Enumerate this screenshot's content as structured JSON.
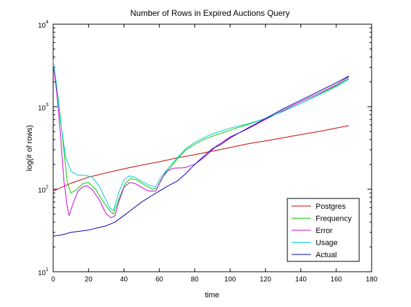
{
  "chart_data": {
    "type": "line",
    "title": "Number of Rows in Expired Auctions Query",
    "xlabel": "time",
    "ylabel": "log(# of rows)",
    "xlim": [
      0,
      180
    ],
    "ylim": [
      10,
      10000
    ],
    "yscale": "log",
    "x_ticks": [
      0,
      20,
      40,
      60,
      80,
      100,
      120,
      140,
      160,
      180
    ],
    "x_tick_labels": [
      "0",
      "20",
      "40",
      "60",
      "80",
      "100",
      "120",
      "140",
      "160",
      "180"
    ],
    "y_ticks": [
      10,
      100,
      1000,
      10000
    ],
    "y_tick_labels": [
      {
        "base": "10",
        "exp": "1"
      },
      {
        "base": "10",
        "exp": "2"
      },
      {
        "base": "10",
        "exp": "3"
      },
      {
        "base": "10",
        "exp": "4"
      }
    ],
    "grid": false,
    "legend_position": "bottom-right",
    "series": [
      {
        "name": "Postgres",
        "color": "#cc0000",
        "points": [
          [
            0,
            95
          ],
          [
            10,
            118
          ],
          [
            20,
            140
          ],
          [
            30,
            158
          ],
          [
            40,
            177
          ],
          [
            50,
            196
          ],
          [
            60,
            215
          ],
          [
            70,
            240
          ],
          [
            80,
            262
          ],
          [
            90,
            290
          ],
          [
            100,
            320
          ],
          [
            110,
            355
          ],
          [
            120,
            385
          ],
          [
            130,
            420
          ],
          [
            140,
            460
          ],
          [
            150,
            500
          ],
          [
            160,
            550
          ],
          [
            167,
            590
          ]
        ]
      },
      {
        "name": "Frequency",
        "color": "#00cc00",
        "points": [
          [
            0,
            3200
          ],
          [
            3,
            1200
          ],
          [
            6,
            300
          ],
          [
            8,
            120
          ],
          [
            10,
            90
          ],
          [
            13,
            98
          ],
          [
            17,
            118
          ],
          [
            20,
            120
          ],
          [
            24,
            100
          ],
          [
            28,
            72
          ],
          [
            32,
            55
          ],
          [
            34,
            50
          ],
          [
            37,
            75
          ],
          [
            41,
            120
          ],
          [
            44,
            135
          ],
          [
            47,
            130
          ],
          [
            52,
            112
          ],
          [
            56,
            100
          ],
          [
            59,
            105
          ],
          [
            62,
            140
          ],
          [
            66,
            180
          ],
          [
            70,
            230
          ],
          [
            75,
            300
          ],
          [
            80,
            350
          ],
          [
            85,
            400
          ],
          [
            90,
            440
          ],
          [
            100,
            520
          ],
          [
            110,
            610
          ],
          [
            120,
            720
          ],
          [
            130,
            880
          ],
          [
            140,
            1100
          ],
          [
            150,
            1400
          ],
          [
            160,
            1800
          ],
          [
            167,
            2200
          ]
        ]
      },
      {
        "name": "Error",
        "color": "#cc00cc",
        "points": [
          [
            0,
            3300
          ],
          [
            2,
            1500
          ],
          [
            4,
            500
          ],
          [
            6,
            130
          ],
          [
            8,
            60
          ],
          [
            9,
            48
          ],
          [
            11,
            65
          ],
          [
            14,
            95
          ],
          [
            17,
            108
          ],
          [
            19,
            110
          ],
          [
            22,
            100
          ],
          [
            26,
            75
          ],
          [
            30,
            50
          ],
          [
            33,
            45
          ],
          [
            35,
            48
          ],
          [
            37,
            70
          ],
          [
            40,
            105
          ],
          [
            43,
            120
          ],
          [
            46,
            118
          ],
          [
            50,
            105
          ],
          [
            54,
            95
          ],
          [
            58,
            95
          ],
          [
            61,
            130
          ],
          [
            64,
            165
          ],
          [
            68,
            180
          ],
          [
            74,
            182
          ],
          [
            80,
            200
          ],
          [
            86,
            250
          ],
          [
            92,
            330
          ],
          [
            100,
            430
          ],
          [
            110,
            540
          ],
          [
            120,
            700
          ],
          [
            130,
            900
          ],
          [
            140,
            1150
          ],
          [
            150,
            1450
          ],
          [
            160,
            1850
          ],
          [
            167,
            2300
          ]
        ]
      },
      {
        "name": "Usage",
        "color": "#00cccc",
        "points": [
          [
            0,
            3600
          ],
          [
            2,
            1800
          ],
          [
            4,
            700
          ],
          [
            7,
            250
          ],
          [
            10,
            165
          ],
          [
            14,
            148
          ],
          [
            18,
            148
          ],
          [
            22,
            140
          ],
          [
            26,
            110
          ],
          [
            29,
            80
          ],
          [
            32,
            60
          ],
          [
            34,
            55
          ],
          [
            37,
            90
          ],
          [
            40,
            130
          ],
          [
            43,
            145
          ],
          [
            46,
            140
          ],
          [
            50,
            125
          ],
          [
            55,
            110
          ],
          [
            58,
            108
          ],
          [
            61,
            140
          ],
          [
            65,
            180
          ],
          [
            70,
            240
          ],
          [
            75,
            310
          ],
          [
            80,
            370
          ],
          [
            85,
            420
          ],
          [
            90,
            470
          ],
          [
            100,
            550
          ],
          [
            110,
            620
          ],
          [
            120,
            720
          ],
          [
            130,
            880
          ],
          [
            140,
            1100
          ],
          [
            150,
            1380
          ],
          [
            160,
            1750
          ],
          [
            167,
            2150
          ]
        ]
      },
      {
        "name": "Actual",
        "color": "#0000aa",
        "points": [
          [
            0,
            27
          ],
          [
            5,
            28
          ],
          [
            10,
            30
          ],
          [
            15,
            31
          ],
          [
            20,
            32
          ],
          [
            25,
            34
          ],
          [
            30,
            36
          ],
          [
            35,
            40
          ],
          [
            40,
            48
          ],
          [
            45,
            58
          ],
          [
            50,
            70
          ],
          [
            55,
            82
          ],
          [
            60,
            95
          ],
          [
            65,
            110
          ],
          [
            70,
            125
          ],
          [
            75,
            155
          ],
          [
            80,
            200
          ],
          [
            85,
            250
          ],
          [
            90,
            310
          ],
          [
            95,
            350
          ],
          [
            100,
            420
          ],
          [
            110,
            550
          ],
          [
            120,
            720
          ],
          [
            130,
            940
          ],
          [
            140,
            1200
          ],
          [
            150,
            1530
          ],
          [
            160,
            1950
          ],
          [
            167,
            2350
          ]
        ]
      }
    ]
  }
}
